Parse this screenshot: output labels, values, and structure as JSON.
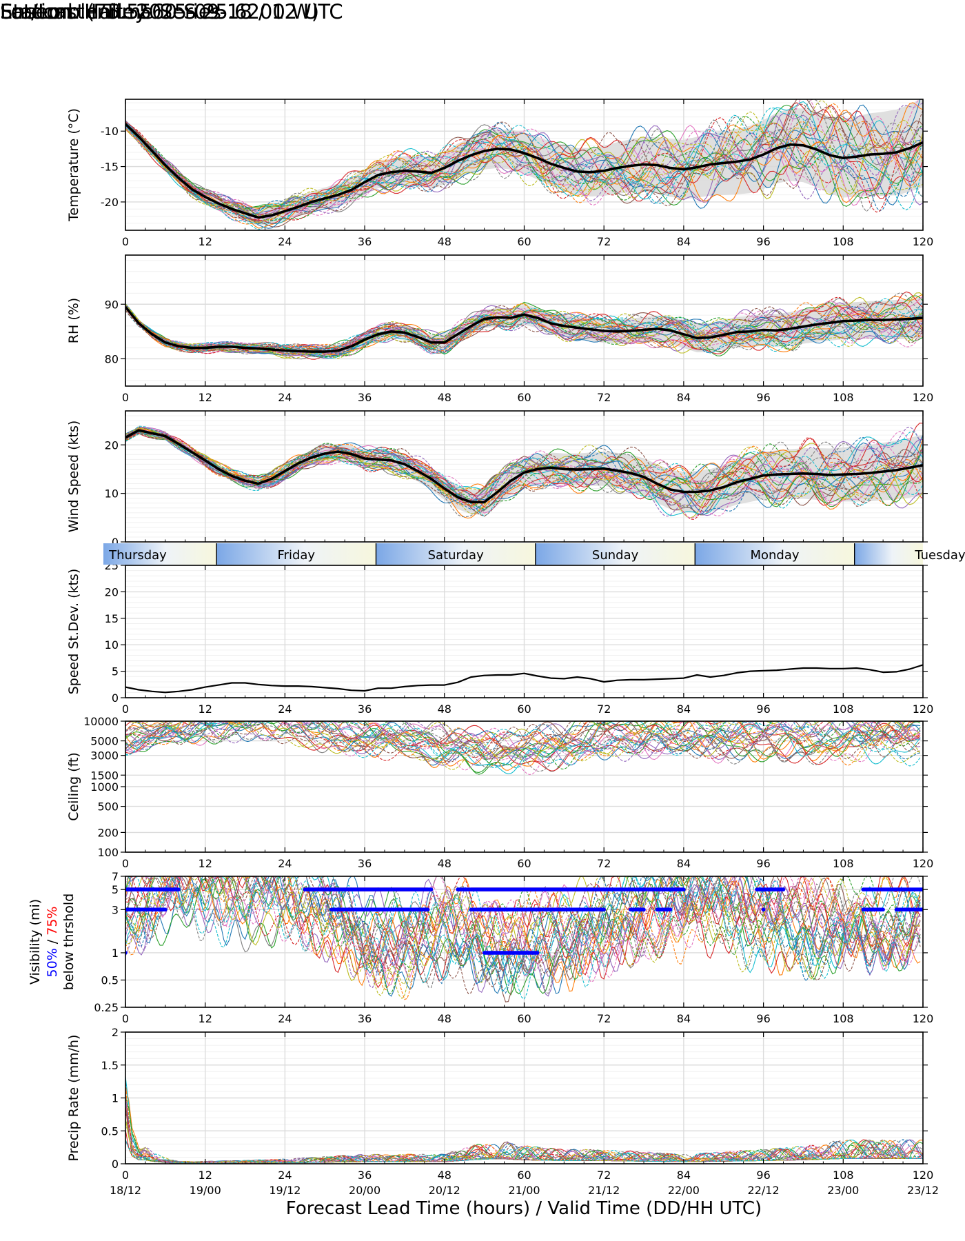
{
  "header": {
    "title_left": "Ensemble Time Series",
    "title_right": "Forecast Init: 2025-09-18 / 12 UTC",
    "station": "Station: Halley",
    "latlon": "Lat/Lon: (75.5560 S 25.6200 W)"
  },
  "x_axis": {
    "label": "Forecast Lead Time (hours) / Valid Time (DD/HH UTC)",
    "range": [
      0,
      120
    ],
    "ticks": [
      "0",
      "12",
      "24",
      "36",
      "48",
      "60",
      "72",
      "84",
      "96",
      "108",
      "120"
    ],
    "valid_times": [
      "18/12",
      "19/00",
      "19/12",
      "20/00",
      "20/12",
      "21/00",
      "21/12",
      "22/00",
      "22/12",
      "23/00",
      "23/12"
    ]
  },
  "day_bar": {
    "days": [
      "Thursday",
      "Friday",
      "Saturday",
      "Sunday",
      "Monday",
      "Tuesday"
    ],
    "midnight_hours": [
      13.7,
      37.7,
      61.7,
      85.7,
      109.7
    ]
  },
  "colors": {
    "members": [
      "#1f77b4",
      "#ff7f0e",
      "#2ca02c",
      "#d62728",
      "#9467bd",
      "#8c564b",
      "#e377c2",
      "#7f7f7f",
      "#bcbd22",
      "#17becf"
    ],
    "mean": "#000000",
    "spread": "#d9d9d9",
    "grid": "#dcdcdc",
    "vis_50": "#0000ff",
    "vis_75": "#ff0000"
  },
  "chart_data": [
    {
      "id": "temperature",
      "type": "line",
      "ylabel": "Temperature (°C)",
      "ylim": [
        -24,
        -5.5
      ],
      "yticks": [
        -20,
        -15,
        -10
      ],
      "scale": "linear",
      "ensemble": true,
      "members": 30,
      "spread": [
        0.6,
        12
      ],
      "x": [
        0,
        2,
        4,
        6,
        8,
        10,
        12,
        14,
        16,
        18,
        20,
        22,
        24,
        26,
        28,
        30,
        32,
        34,
        36,
        38,
        40,
        42,
        44,
        46,
        48,
        50,
        52,
        54,
        56,
        58,
        60,
        62,
        64,
        66,
        68,
        70,
        72,
        74,
        76,
        78,
        80,
        82,
        84,
        86,
        88,
        90,
        92,
        94,
        96,
        98,
        100,
        102,
        104,
        106,
        108,
        110,
        112,
        114,
        116,
        118,
        120
      ],
      "mean": [
        -9.0,
        -10.8,
        -12.8,
        -14.8,
        -16.6,
        -18.2,
        -19.3,
        -20.2,
        -21.0,
        -21.6,
        -22.2,
        -21.9,
        -21.3,
        -20.7,
        -20.0,
        -19.5,
        -19.0,
        -18.3,
        -17.2,
        -16.2,
        -15.8,
        -15.6,
        -15.7,
        -15.9,
        -15.2,
        -14.2,
        -13.4,
        -12.8,
        -12.5,
        -12.6,
        -13.1,
        -13.8,
        -14.6,
        -15.2,
        -15.7,
        -15.8,
        -15.6,
        -15.2,
        -14.9,
        -14.7,
        -14.8,
        -15.2,
        -15.4,
        -15.1,
        -14.7,
        -14.5,
        -14.3,
        -14.0,
        -13.3,
        -12.4,
        -11.9,
        -12.0,
        -12.6,
        -13.4,
        -13.8,
        -13.6,
        -13.3,
        -13.2,
        -13.0,
        -12.4,
        -11.6
      ],
      "annotations": []
    },
    {
      "id": "rh",
      "type": "line",
      "ylabel": "RH (%)",
      "ylim": [
        75,
        99
      ],
      "yticks": [
        80,
        90
      ],
      "scale": "linear",
      "ensemble": true,
      "members": 30,
      "spread": [
        0.5,
        7
      ],
      "x": [
        0,
        2,
        4,
        6,
        8,
        10,
        12,
        14,
        16,
        18,
        20,
        22,
        24,
        26,
        28,
        30,
        32,
        34,
        36,
        38,
        40,
        42,
        44,
        46,
        48,
        50,
        52,
        54,
        56,
        58,
        60,
        62,
        64,
        66,
        68,
        70,
        72,
        74,
        76,
        78,
        80,
        82,
        84,
        86,
        88,
        90,
        92,
        94,
        96,
        98,
        100,
        102,
        104,
        106,
        108,
        110,
        112,
        114,
        116,
        118,
        120
      ],
      "mean": [
        89.5,
        86.5,
        84.5,
        83.0,
        82.3,
        82.0,
        82.0,
        82.2,
        82.2,
        82.0,
        81.9,
        81.7,
        81.5,
        81.4,
        81.3,
        81.3,
        81.5,
        82.3,
        83.5,
        84.5,
        85.0,
        84.8,
        84.0,
        83.0,
        83.0,
        84.5,
        86.0,
        87.3,
        87.6,
        87.5,
        88.1,
        87.5,
        86.5,
        86.0,
        85.7,
        85.4,
        85.1,
        85.0,
        85.1,
        85.3,
        85.5,
        85.2,
        84.5,
        83.8,
        83.9,
        84.4,
        84.9,
        85.0,
        85.3,
        85.2,
        85.5,
        85.9,
        86.3,
        86.6,
        86.9,
        87.0,
        87.1,
        87.1,
        87.2,
        87.3,
        87.5
      ],
      "annotations": []
    },
    {
      "id": "wind_speed",
      "type": "line",
      "ylabel": "Wind Speed (kts)",
      "ylim": [
        0,
        27
      ],
      "yticks": [
        0,
        10,
        20
      ],
      "scale": "linear",
      "ensemble": true,
      "members": 30,
      "spread": [
        0.6,
        12
      ],
      "x": [
        0,
        2,
        4,
        6,
        8,
        10,
        12,
        14,
        16,
        18,
        20,
        22,
        24,
        26,
        28,
        30,
        32,
        34,
        36,
        38,
        40,
        42,
        44,
        46,
        48,
        50,
        52,
        54,
        56,
        58,
        60,
        62,
        64,
        66,
        68,
        70,
        72,
        74,
        76,
        78,
        80,
        82,
        84,
        86,
        88,
        90,
        92,
        94,
        96,
        98,
        100,
        102,
        104,
        106,
        108,
        110,
        112,
        114,
        116,
        118,
        120
      ],
      "mean": [
        21.5,
        23.0,
        22.4,
        21.8,
        20.2,
        18.5,
        16.8,
        15.0,
        13.6,
        12.6,
        12.0,
        13.0,
        14.6,
        16.2,
        17.4,
        18.2,
        18.6,
        18.1,
        17.2,
        17.0,
        16.8,
        16.0,
        14.6,
        13.0,
        11.0,
        9.2,
        8.2,
        8.2,
        10.3,
        12.6,
        14.3,
        15.0,
        15.3,
        15.0,
        14.9,
        15.0,
        15.1,
        14.7,
        14.2,
        13.4,
        12.0,
        10.8,
        10.3,
        10.3,
        10.6,
        11.3,
        12.3,
        13.0,
        13.7,
        13.9,
        14.0,
        14.1,
        14.0,
        13.8,
        13.9,
        14.0,
        14.2,
        14.5,
        14.8,
        15.3,
        15.8
      ],
      "annotations": []
    },
    {
      "id": "speed_stdev",
      "type": "line",
      "ylabel": "Speed St.Dev. (kts)",
      "ylim": [
        0,
        25
      ],
      "yticks": [
        0,
        5,
        10,
        15,
        20,
        25
      ],
      "scale": "linear",
      "ensemble": false,
      "members": 0,
      "spread": [
        0,
        0
      ],
      "x": [
        0,
        2,
        4,
        6,
        8,
        10,
        12,
        14,
        16,
        18,
        20,
        22,
        24,
        26,
        28,
        30,
        32,
        34,
        36,
        38,
        40,
        42,
        44,
        46,
        48,
        50,
        52,
        54,
        56,
        58,
        60,
        62,
        64,
        66,
        68,
        70,
        72,
        74,
        76,
        78,
        80,
        82,
        84,
        86,
        88,
        90,
        92,
        94,
        96,
        98,
        100,
        102,
        104,
        106,
        108,
        110,
        112,
        114,
        116,
        118,
        120
      ],
      "mean": [
        2.0,
        1.5,
        1.2,
        1.0,
        1.2,
        1.5,
        2.0,
        2.4,
        2.8,
        2.8,
        2.5,
        2.3,
        2.2,
        2.2,
        2.1,
        1.9,
        1.7,
        1.4,
        1.3,
        1.8,
        1.8,
        2.1,
        2.3,
        2.4,
        2.4,
        2.9,
        3.9,
        4.2,
        4.3,
        4.3,
        4.6,
        4.1,
        3.7,
        3.6,
        3.9,
        3.6,
        3.0,
        3.3,
        3.4,
        3.4,
        3.5,
        3.6,
        3.7,
        4.3,
        3.9,
        4.2,
        4.7,
        5.0,
        5.1,
        5.2,
        5.4,
        5.6,
        5.6,
        5.5,
        5.5,
        5.6,
        5.3,
        4.8,
        4.9,
        5.4,
        6.2
      ],
      "annotations": []
    },
    {
      "id": "ceiling",
      "type": "line",
      "ylabel": "Ceiling (ft)",
      "ylim": [
        100,
        10000
      ],
      "yticks": [
        100,
        200,
        500,
        1000,
        1500,
        3000,
        5000,
        10000
      ],
      "scale": "log",
      "ensemble": true,
      "members": 30,
      "spread": [
        0,
        0
      ],
      "x": [
        0,
        6,
        12,
        18,
        24,
        30,
        36,
        42,
        48,
        54,
        60,
        66,
        72,
        78,
        84,
        90,
        96,
        102,
        108,
        114,
        120
      ],
      "mean": [
        6000,
        7500,
        9000,
        9500,
        9000,
        7000,
        5500,
        5500,
        4000,
        3500,
        3500,
        4500,
        6000,
        6500,
        6000,
        6000,
        6000,
        6000,
        6000,
        6000,
        5500
      ],
      "annotations": []
    },
    {
      "id": "visibility",
      "type": "line",
      "ylabel": "Visibility (mi)",
      "ylabel_50": "50%",
      "ylabel_sep": " / ",
      "ylabel_75": "75%",
      "ylabel_2": "below thrshold",
      "ylim": [
        0.25,
        7
      ],
      "yticks": [
        0.25,
        0.5,
        1,
        3,
        5,
        7
      ],
      "scale": "log",
      "ensemble": true,
      "members": 30,
      "spread": [
        0,
        0
      ],
      "x": [
        0,
        6,
        12,
        18,
        24,
        30,
        36,
        42,
        48,
        54,
        60,
        66,
        72,
        78,
        84,
        90,
        96,
        102,
        108,
        114,
        120
      ],
      "mean": [
        3,
        5,
        5,
        4,
        5,
        3,
        1.5,
        1.2,
        2,
        1.2,
        1.2,
        1.5,
        2,
        3,
        3,
        3,
        2,
        2,
        2,
        2.5,
        3
      ],
      "thresholds": [
        {
          "level": 1,
          "pct": "50%",
          "start": 0,
          "end": 1
        },
        {
          "level": 1,
          "pct": "50%",
          "start": 54,
          "end": 62
        },
        {
          "level": 3,
          "pct": "75%",
          "start": 31,
          "end": 45.5
        },
        {
          "level": 3,
          "pct": "75%",
          "start": 52,
          "end": 72
        },
        {
          "level": 3,
          "pct": "50%",
          "start": 0,
          "end": 6
        },
        {
          "level": 3,
          "pct": "50%",
          "start": 31,
          "end": 45.5
        },
        {
          "level": 3,
          "pct": "50%",
          "start": 52,
          "end": 72
        },
        {
          "level": 3,
          "pct": "50%",
          "start": 76,
          "end": 78
        },
        {
          "level": 3,
          "pct": "50%",
          "start": 80,
          "end": 82
        },
        {
          "level": 3,
          "pct": "50%",
          "start": 96,
          "end": 97
        },
        {
          "level": 3,
          "pct": "50%",
          "start": 111,
          "end": 114
        },
        {
          "level": 3,
          "pct": "50%",
          "start": 116,
          "end": 120
        },
        {
          "level": 5,
          "pct": "75%",
          "start": 0,
          "end": 6
        },
        {
          "level": 5,
          "pct": "75%",
          "start": 27,
          "end": 45.5
        },
        {
          "level": 5,
          "pct": "75%",
          "start": 52,
          "end": 72
        },
        {
          "level": 5,
          "pct": "50%",
          "start": 0,
          "end": 8
        },
        {
          "level": 5,
          "pct": "50%",
          "start": 27,
          "end": 46
        },
        {
          "level": 5,
          "pct": "50%",
          "start": 50,
          "end": 84
        },
        {
          "level": 5,
          "pct": "50%",
          "start": 95,
          "end": 99
        },
        {
          "level": 5,
          "pct": "50%",
          "start": 111,
          "end": 120
        }
      ],
      "annotations": []
    },
    {
      "id": "precip",
      "type": "line",
      "ylabel": "Precip Rate (mm/h)",
      "ylim": [
        0,
        2
      ],
      "yticks": [
        0.0,
        0.5,
        1.0,
        1.5,
        2.0
      ],
      "scale": "linear",
      "ensemble": true,
      "members": 30,
      "spread": [
        0,
        0
      ],
      "x": [
        0,
        1,
        2,
        3,
        4,
        6,
        8,
        12,
        24,
        36,
        42,
        48,
        52,
        56,
        60,
        66,
        72,
        78,
        84,
        90,
        96,
        102,
        108,
        114,
        120
      ],
      "mean": [
        0.9,
        0.3,
        0.15,
        0.15,
        0.1,
        0.05,
        0.02,
        0.02,
        0.04,
        0.08,
        0.08,
        0.08,
        0.15,
        0.2,
        0.15,
        0.12,
        0.12,
        0.1,
        0.08,
        0.1,
        0.12,
        0.15,
        0.2,
        0.2,
        0.2
      ],
      "annotations": []
    }
  ]
}
